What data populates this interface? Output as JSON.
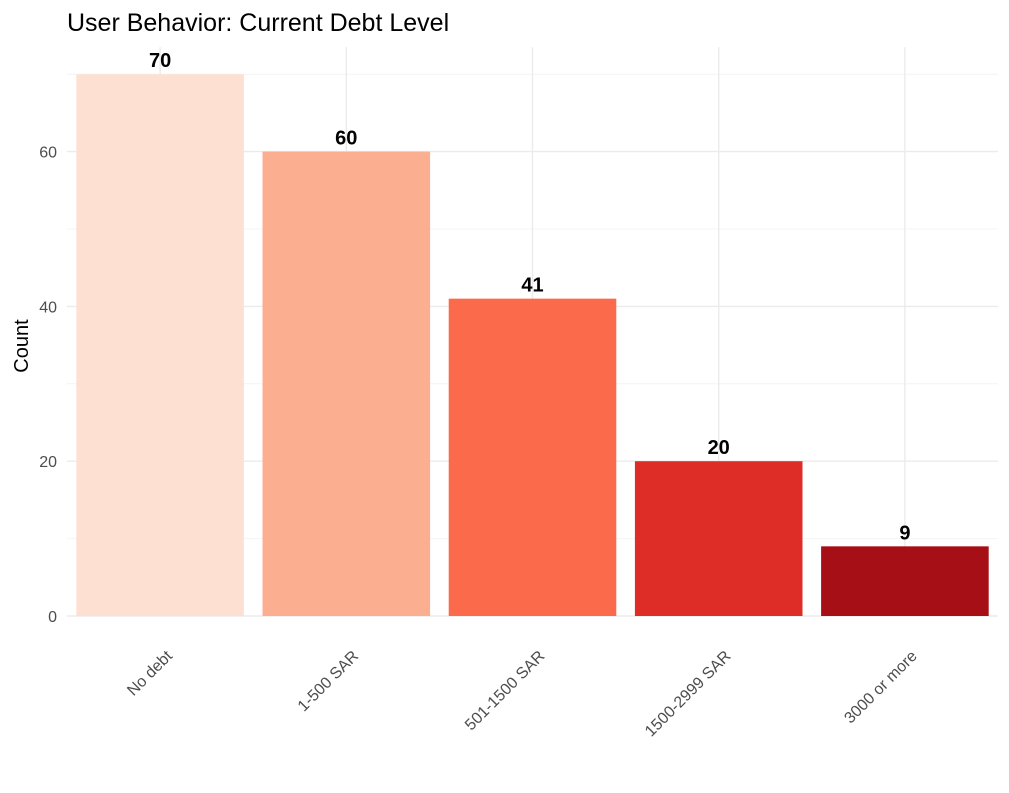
{
  "chart_data": {
    "type": "bar",
    "title": "User Behavior: Current Debt Level",
    "xlabel": "",
    "ylabel": "Count",
    "categories": [
      "No debt",
      "1-500 SAR",
      "501-1500 SAR",
      "1500-2999 SAR",
      "3000 or more"
    ],
    "values": [
      70,
      60,
      41,
      20,
      9
    ],
    "data_labels": [
      "70",
      "60",
      "41",
      "20",
      "9"
    ],
    "colors": [
      "#FEE0D2",
      "#FCAE91",
      "#FB6A4A",
      "#DE2D26",
      "#A50F15"
    ],
    "ylim": [
      0,
      73.5
    ],
    "yticks": [
      0,
      20,
      40,
      60
    ],
    "ytick_labels": [
      "0",
      "20",
      "40",
      "60"
    ],
    "grid": true,
    "legend": "none",
    "x_tick_rotation": "45 degrees"
  },
  "colors": {
    "grid_major": "#ebebeb",
    "grid_minor": "#f4f4f4",
    "tick_text": "#4d4d4d",
    "text": "#000000"
  }
}
